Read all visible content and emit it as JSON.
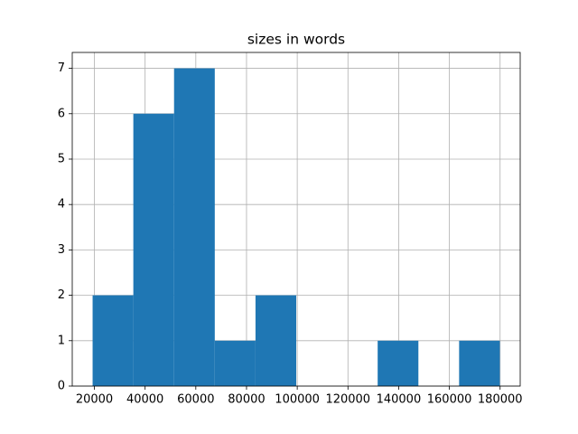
{
  "chart_data": {
    "type": "histogram",
    "title": "sizes in words",
    "bins": [
      19300,
      35360,
      51420,
      67480,
      83540,
      99600,
      115660,
      131720,
      147780,
      163840,
      179900
    ],
    "counts": [
      2,
      6,
      7,
      1,
      2,
      0,
      0,
      1,
      0,
      1
    ],
    "color": "#1f77b4",
    "xlim": [
      11270,
      187930
    ],
    "xticks": [
      20000,
      40000,
      60000,
      80000,
      100000,
      120000,
      140000,
      160000,
      180000
    ],
    "ylim": [
      0,
      7.35
    ],
    "yticks": [
      0,
      1,
      2,
      3,
      4,
      5,
      6,
      7
    ],
    "grid": true
  }
}
